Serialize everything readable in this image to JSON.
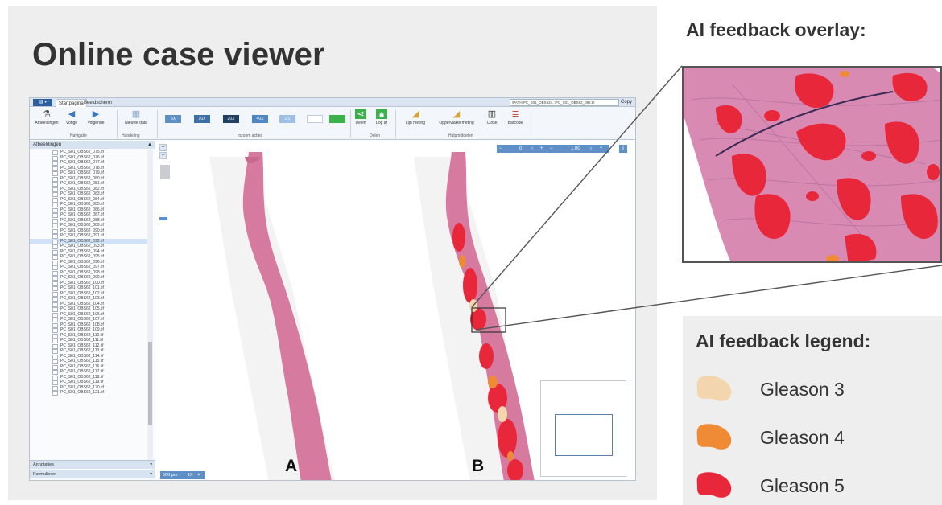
{
  "title": "Online case viewer",
  "app": {
    "tabs": [
      "Startpagina",
      "Beeldscherm"
    ],
    "path_text": "\\PATH\\PC_S01_OBS62\\...\\PC_S01_OBS62_092.tif",
    "copy_label": "Copy",
    "ribbon": {
      "buttons": [
        "Afbeeldingen",
        "Vorige",
        "Volgende",
        "Nieuwe data",
        "Delen",
        "Log af",
        "Lijn meting",
        "Oppervlakte meting",
        "Close",
        "Barcode"
      ],
      "group_labels": [
        "Navigatie",
        "Handeling",
        "Inzoom acties",
        "Delen",
        "Hulpmiddelen"
      ],
      "zoom_levels": [
        "5X",
        "10X",
        "20X",
        "40X",
        "1:1"
      ]
    },
    "sidebar": {
      "header": "Afbeeldingen",
      "files": [
        "PC_S01_OBS62_075.tif",
        "PC_S01_OBS62_076.tif",
        "PC_S01_OBS62_077.tif",
        "PC_S01_OBS62_078.tif",
        "PC_S01_OBS62_079.tif",
        "PC_S01_OBS62_080.tif",
        "PC_S01_OBS62_081.tif",
        "PC_S01_OBS62_082.tif",
        "PC_S01_OBS62_083.tif",
        "PC_S01_OBS62_084.tif",
        "PC_S01_OBS62_085.tif",
        "PC_S01_OBS62_086.tif",
        "PC_S01_OBS62_087.tif",
        "PC_S01_OBS62_088.tif",
        "PC_S01_OBS62_089.tif",
        "PC_S01_OBS62_090.tif",
        "PC_S01_OBS62_091.tif",
        "PC_S01_OBS62_092.tif",
        "PC_S01_OBS62_093.tif",
        "PC_S01_OBS62_094.tif",
        "PC_S01_OBS62_095.tif",
        "PC_S01_OBS62_096.tif",
        "PC_S01_OBS62_097.tif",
        "PC_S01_OBS62_098.tif",
        "PC_S01_OBS62_099.tif",
        "PC_S01_OBS62_100.tif",
        "PC_S01_OBS62_101.tif",
        "PC_S01_OBS62_102.tif",
        "PC_S01_OBS62_103.tif",
        "PC_S01_OBS62_104.tif",
        "PC_S01_OBS62_105.tif",
        "PC_S01_OBS62_106.tif",
        "PC_S01_OBS62_107.tif",
        "PC_S01_OBS62_108.tif",
        "PC_S01_OBS62_109.tif",
        "PC_S01_OBS62_110.tif",
        "PC_S01_OBS62_111.tif",
        "PC_S01_OBS62_112.tif",
        "PC_S01_OBS62_113.tif",
        "PC_S01_OBS62_114.tif",
        "PC_S01_OBS62_115.tif",
        "PC_S01_OBS62_116.tif",
        "PC_S01_OBS62_117.tif",
        "PC_S01_OBS62_118.tif",
        "PC_S01_OBS62_119.tif",
        "PC_S01_OBS62_120.tif",
        "PC_S01_OBS62_121.tif"
      ],
      "selected_file": "PC_S01_OBS62_092.tif",
      "footer_sections": [
        "Annotaties",
        "Formulieren"
      ]
    },
    "viewer": {
      "rotation_value": "0",
      "zoom_value": "1.00",
      "scale_label": "500 µm",
      "scale_zoom": "1X",
      "panel_labels": [
        "A",
        "B"
      ]
    }
  },
  "ai_overlay_title": "AI feedback overlay:",
  "legend": {
    "title": "AI feedback legend:",
    "items": [
      {
        "label": "Gleason 3",
        "color": "#f3d6ad"
      },
      {
        "label": "Gleason 4",
        "color": "#ef8a35"
      },
      {
        "label": "Gleason 5",
        "color": "#e8283a"
      }
    ]
  },
  "colors": {
    "tissue": "#d77aa0",
    "highlight_red": "#e8283a",
    "ribbon_blue": "#3b78c2"
  }
}
